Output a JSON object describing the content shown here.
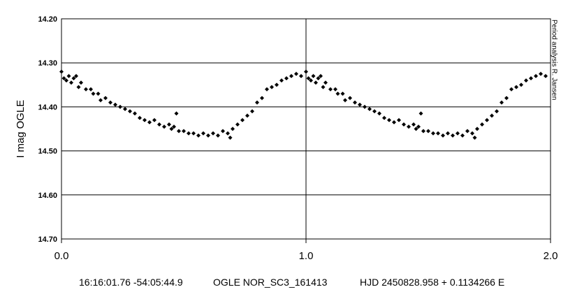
{
  "chart_data": {
    "type": "scatter",
    "y_label": "I mag OGLE",
    "side_note": "Period analysis R. Jansen",
    "footer": [
      "16:16:01.76 -54:05:44.9",
      "OGLE NOR_SC3_161413",
      "HJD 2450828.958 + 0.1134266 E"
    ],
    "color": "#000000",
    "xlim": [
      0,
      2
    ],
    "xticks": [
      {
        "value": 0,
        "label": "0.0"
      },
      {
        "value": 1,
        "label": "1.0"
      },
      {
        "value": 2,
        "label": "2.0"
      }
    ],
    "ylim": [
      14.2,
      14.7
    ],
    "y_inverted": true,
    "yticks": [
      {
        "value": 14.2,
        "label": "14.20"
      },
      {
        "value": 14.3,
        "label": "14.30"
      },
      {
        "value": 14.4,
        "label": "14.40"
      },
      {
        "value": 14.5,
        "label": "14.50"
      },
      {
        "value": 14.6,
        "label": "14.60"
      },
      {
        "value": 14.7,
        "label": "14.70"
      }
    ],
    "grid": true,
    "x": [
      0.0,
      0.01,
      0.02,
      0.03,
      0.04,
      0.05,
      0.06,
      0.07,
      0.08,
      0.1,
      0.12,
      0.13,
      0.15,
      0.16,
      0.18,
      0.2,
      0.22,
      0.24,
      0.26,
      0.28,
      0.3,
      0.32,
      0.34,
      0.36,
      0.38,
      0.4,
      0.42,
      0.44,
      0.45,
      0.46,
      0.47,
      0.48,
      0.5,
      0.52,
      0.54,
      0.56,
      0.58,
      0.6,
      0.62,
      0.64,
      0.66,
      0.68,
      0.69,
      0.7,
      0.72,
      0.74,
      0.76,
      0.78,
      0.8,
      0.82,
      0.84,
      0.86,
      0.88,
      0.9,
      0.92,
      0.94,
      0.96,
      0.98,
      1.0,
      1.01,
      1.02,
      1.03,
      1.04,
      1.05,
      1.06,
      1.07,
      1.08,
      1.1,
      1.12,
      1.13,
      1.15,
      1.16,
      1.18,
      1.2,
      1.22,
      1.24,
      1.26,
      1.28,
      1.3,
      1.32,
      1.34,
      1.36,
      1.38,
      1.4,
      1.42,
      1.44,
      1.45,
      1.46,
      1.47,
      1.48,
      1.5,
      1.52,
      1.54,
      1.56,
      1.58,
      1.6,
      1.62,
      1.64,
      1.66,
      1.68,
      1.69,
      1.7,
      1.72,
      1.74,
      1.76,
      1.78,
      1.8,
      1.82,
      1.84,
      1.86,
      1.88,
      1.9,
      1.92,
      1.94,
      1.96,
      1.98
    ],
    "values": [
      14.32,
      14.335,
      14.34,
      14.33,
      14.345,
      14.335,
      14.33,
      14.355,
      14.345,
      14.36,
      14.36,
      14.37,
      14.37,
      14.385,
      14.38,
      14.39,
      14.395,
      14.4,
      14.405,
      14.41,
      14.415,
      14.425,
      14.43,
      14.435,
      14.43,
      14.44,
      14.445,
      14.44,
      14.45,
      14.445,
      14.415,
      14.455,
      14.455,
      14.46,
      14.46,
      14.465,
      14.46,
      14.465,
      14.46,
      14.465,
      14.455,
      14.46,
      14.47,
      14.45,
      14.44,
      14.43,
      14.42,
      14.41,
      14.39,
      14.38,
      14.36,
      14.355,
      14.35,
      14.34,
      14.335,
      14.33,
      14.325,
      14.33,
      14.32,
      14.335,
      14.34,
      14.33,
      14.345,
      14.335,
      14.33,
      14.355,
      14.345,
      14.36,
      14.36,
      14.37,
      14.37,
      14.385,
      14.38,
      14.39,
      14.395,
      14.4,
      14.405,
      14.41,
      14.415,
      14.425,
      14.43,
      14.435,
      14.43,
      14.44,
      14.445,
      14.44,
      14.45,
      14.445,
      14.415,
      14.455,
      14.455,
      14.46,
      14.46,
      14.465,
      14.46,
      14.465,
      14.46,
      14.465,
      14.455,
      14.46,
      14.47,
      14.45,
      14.44,
      14.43,
      14.42,
      14.41,
      14.39,
      14.38,
      14.36,
      14.355,
      14.35,
      14.34,
      14.335,
      14.33,
      14.325,
      14.33
    ]
  }
}
